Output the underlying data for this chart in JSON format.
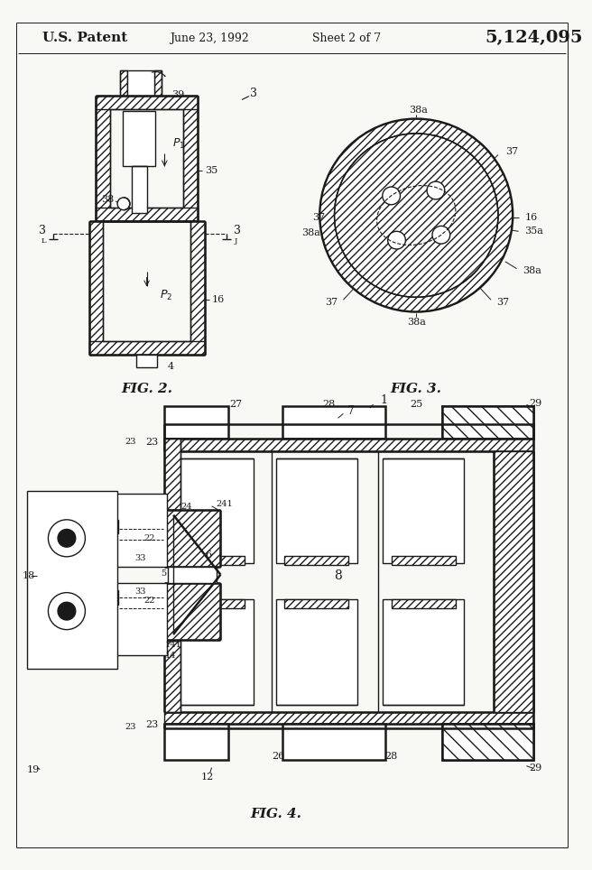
{
  "bg_color": "#f8f8f5",
  "line_color": "#1a1a1a",
  "header": {
    "patent_text": "U.S. Patent",
    "date_text": "June 23, 1992",
    "sheet_text": "Sheet 2 of 7",
    "number_text": "5,124,095"
  },
  "fig2_caption": "FIG. 2.",
  "fig3_caption": "FIG. 3.",
  "fig4_caption": "FIG. 4."
}
